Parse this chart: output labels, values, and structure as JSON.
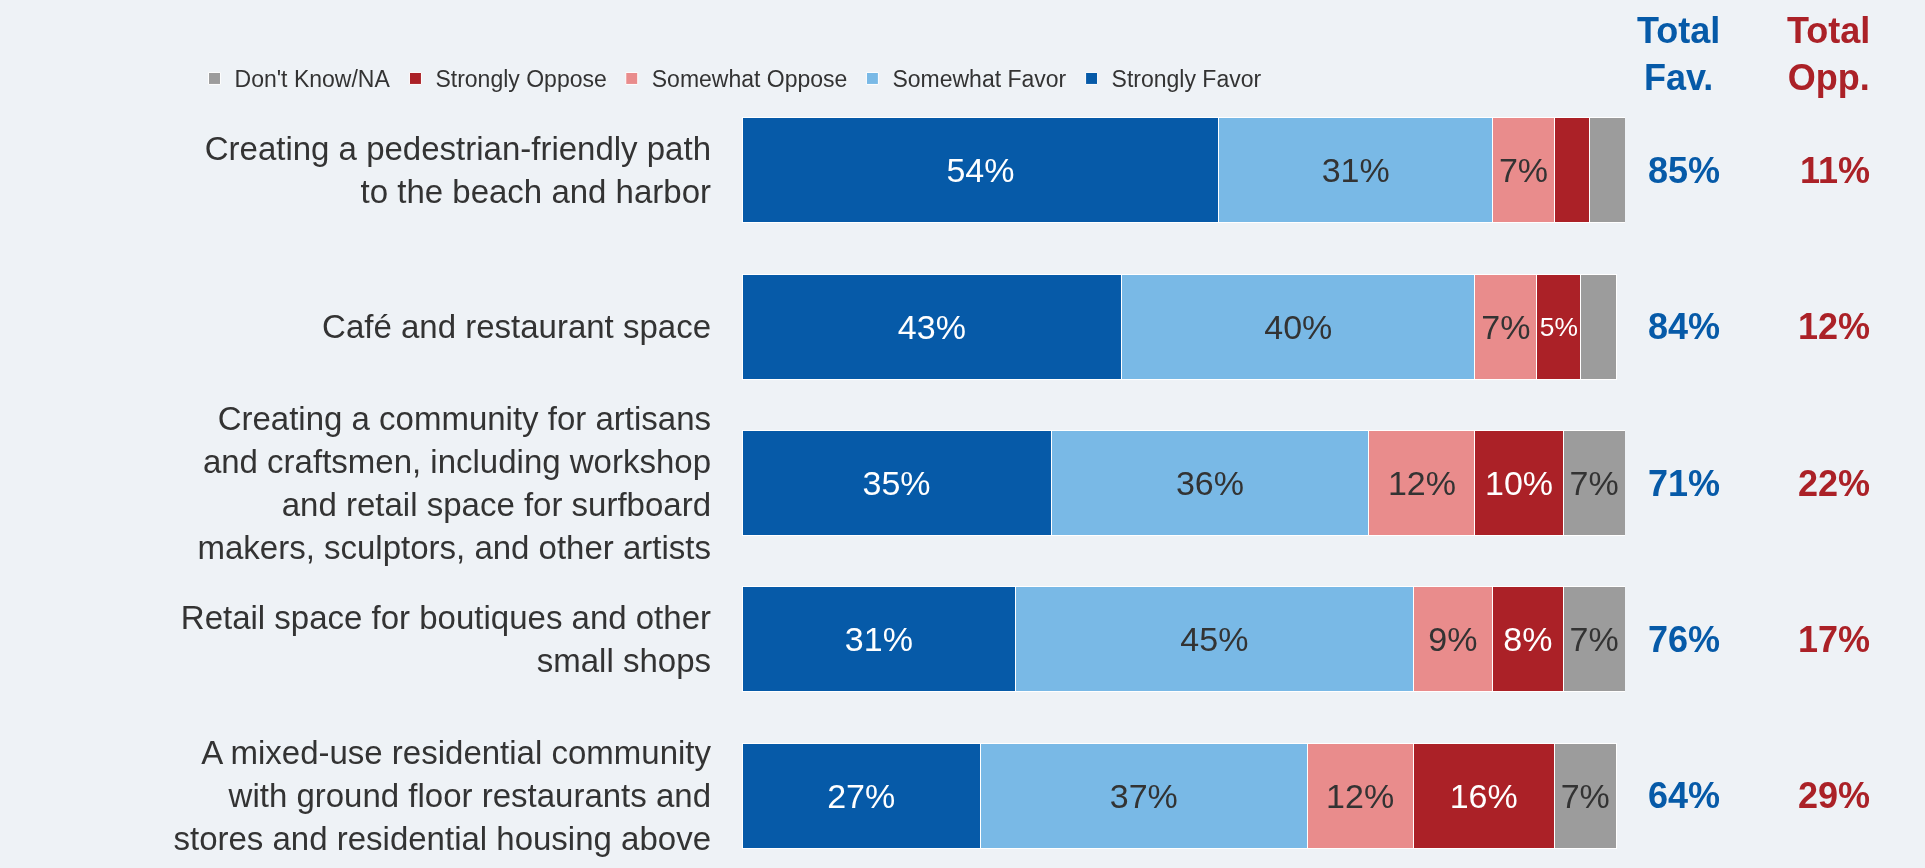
{
  "chart_data": {
    "type": "bar",
    "orientation": "horizontal",
    "stacked": true,
    "categories": [
      "Creating a pedestrian-friendly path to the beach and harbor",
      "Café and restaurant space",
      "Creating a community for artisans and craftsmen, including workshop and retail space for surfboard makers, sculptors, and other artists",
      "Retail space for boutiques and other small shops",
      "A mixed-use residential community with ground floor restaurants and stores and residential housing above"
    ],
    "series": [
      {
        "name": "Strongly Favor",
        "color": "#065aa8",
        "values": [
          54,
          43,
          35,
          31,
          27
        ],
        "value_labels": [
          "54%",
          "43%",
          "35%",
          "31%",
          "27%"
        ]
      },
      {
        "name": "Somewhat Favor",
        "color": "#79b9e6",
        "values": [
          31,
          40,
          36,
          45,
          37
        ],
        "value_labels": [
          "31%",
          "40%",
          "36%",
          "45%",
          "37%"
        ]
      },
      {
        "name": "Somewhat Oppose",
        "color": "#e98c8c",
        "values": [
          7,
          7,
          12,
          9,
          12
        ],
        "value_labels": [
          "7%",
          "7%",
          "12%",
          "9%",
          "12%"
        ]
      },
      {
        "name": "Strongly Oppose",
        "color": "#ab2127",
        "values": [
          4,
          5,
          10,
          8,
          16
        ],
        "value_labels": [
          null,
          "5%",
          "10%",
          "8%",
          "16%"
        ]
      },
      {
        "name": "Don't Know/NA",
        "color": "#9c9c9c",
        "values": [
          4,
          4,
          7,
          7,
          7
        ],
        "value_labels": [
          null,
          null,
          "7%",
          "7%",
          "7%"
        ]
      }
    ],
    "xlim": [
      0,
      100
    ],
    "tick_labels": "y",
    "grid": false,
    "legend": "top left",
    "annotations": [
      "Total Fav.",
      "Total Opp."
    ],
    "totals": [
      [
        "85%",
        "11%"
      ],
      [
        "84%",
        "12%"
      ],
      [
        "71%",
        "22%"
      ],
      [
        "76%",
        "17%"
      ],
      [
        "64%",
        "29%"
      ]
    ]
  }
}
